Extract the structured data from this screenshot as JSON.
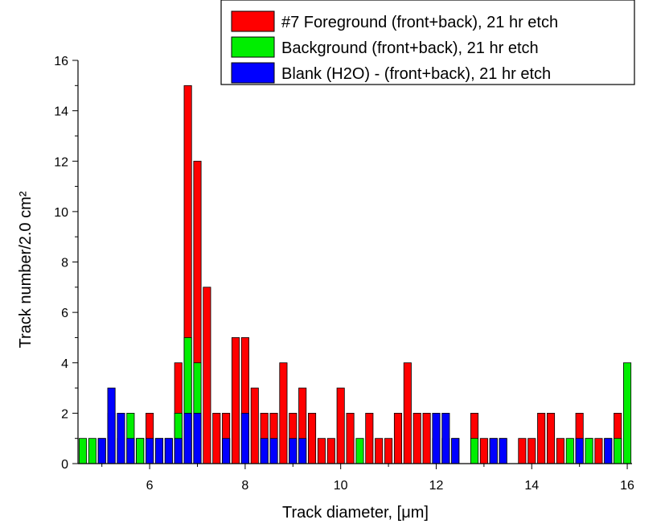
{
  "chart_data": {
    "type": "bar",
    "title": "",
    "xlabel": "Track diameter, [μm]",
    "ylabel": "Track number/2.0 cm²",
    "xlim": [
      4.5,
      16.1
    ],
    "ylim": [
      0,
      16
    ],
    "x_ticks": [
      "6",
      "8",
      "10",
      "12",
      "14",
      "16"
    ],
    "y_ticks": [
      "0",
      "2",
      "4",
      "6",
      "8",
      "10",
      "12",
      "14",
      "16"
    ],
    "bin_width": 0.2,
    "legend_position": "top-right",
    "series": [
      {
        "name": "#7 Foreground (front+back), 21 hr etch",
        "color": "#ff0000",
        "points": [
          [
            5.0,
            1
          ],
          [
            5.2,
            2
          ],
          [
            5.4,
            1
          ],
          [
            5.8,
            1
          ],
          [
            6.0,
            2
          ],
          [
            6.2,
            1
          ],
          [
            6.4,
            1
          ],
          [
            6.6,
            4
          ],
          [
            6.8,
            15
          ],
          [
            7.0,
            12
          ],
          [
            7.2,
            7
          ],
          [
            7.4,
            2
          ],
          [
            7.6,
            2
          ],
          [
            7.8,
            5
          ],
          [
            8.0,
            5
          ],
          [
            8.2,
            3
          ],
          [
            8.4,
            2
          ],
          [
            8.6,
            2
          ],
          [
            8.8,
            4
          ],
          [
            9.0,
            2
          ],
          [
            9.2,
            3
          ],
          [
            9.4,
            2
          ],
          [
            9.6,
            1
          ],
          [
            9.8,
            1
          ],
          [
            10.0,
            3
          ],
          [
            10.2,
            2
          ],
          [
            10.6,
            2
          ],
          [
            10.8,
            1
          ],
          [
            11.0,
            1
          ],
          [
            11.2,
            2
          ],
          [
            11.4,
            4
          ],
          [
            11.6,
            2
          ],
          [
            11.8,
            2
          ],
          [
            12.0,
            1
          ],
          [
            12.2,
            1
          ],
          [
            12.4,
            1
          ],
          [
            12.8,
            2
          ],
          [
            13.0,
            1
          ],
          [
            13.2,
            1
          ],
          [
            13.4,
            1
          ],
          [
            13.8,
            1
          ],
          [
            14.0,
            1
          ],
          [
            14.2,
            2
          ],
          [
            14.4,
            2
          ],
          [
            14.6,
            1
          ],
          [
            15.0,
            2
          ],
          [
            15.2,
            1
          ],
          [
            15.4,
            1
          ],
          [
            15.8,
            2
          ]
        ]
      },
      {
        "name": "Background (front+back), 21 hr etch",
        "color": "#00ee00",
        "points": [
          [
            4.6,
            1
          ],
          [
            4.8,
            1
          ],
          [
            5.6,
            2
          ],
          [
            5.8,
            1
          ],
          [
            6.6,
            2
          ],
          [
            6.8,
            5
          ],
          [
            7.0,
            4
          ],
          [
            10.4,
            1
          ],
          [
            12.8,
            1
          ],
          [
            14.8,
            1
          ],
          [
            15.2,
            1
          ],
          [
            15.6,
            1
          ],
          [
            15.8,
            1
          ],
          [
            16.0,
            4
          ]
        ]
      },
      {
        "name": "Blank (H2O) - (front+back), 21 hr etch",
        "color": "#0000ff",
        "points": [
          [
            5.0,
            1
          ],
          [
            5.2,
            3
          ],
          [
            5.4,
            2
          ],
          [
            5.6,
            1
          ],
          [
            6.0,
            1
          ],
          [
            6.2,
            1
          ],
          [
            6.4,
            1
          ],
          [
            6.6,
            1
          ],
          [
            6.8,
            2
          ],
          [
            7.0,
            2
          ],
          [
            7.6,
            1
          ],
          [
            8.0,
            2
          ],
          [
            8.4,
            1
          ],
          [
            8.6,
            1
          ],
          [
            9.0,
            1
          ],
          [
            9.2,
            1
          ],
          [
            12.0,
            2
          ],
          [
            12.2,
            2
          ],
          [
            12.4,
            1
          ],
          [
            13.2,
            1
          ],
          [
            13.4,
            1
          ],
          [
            15.0,
            1
          ],
          [
            15.6,
            1
          ]
        ]
      }
    ]
  }
}
